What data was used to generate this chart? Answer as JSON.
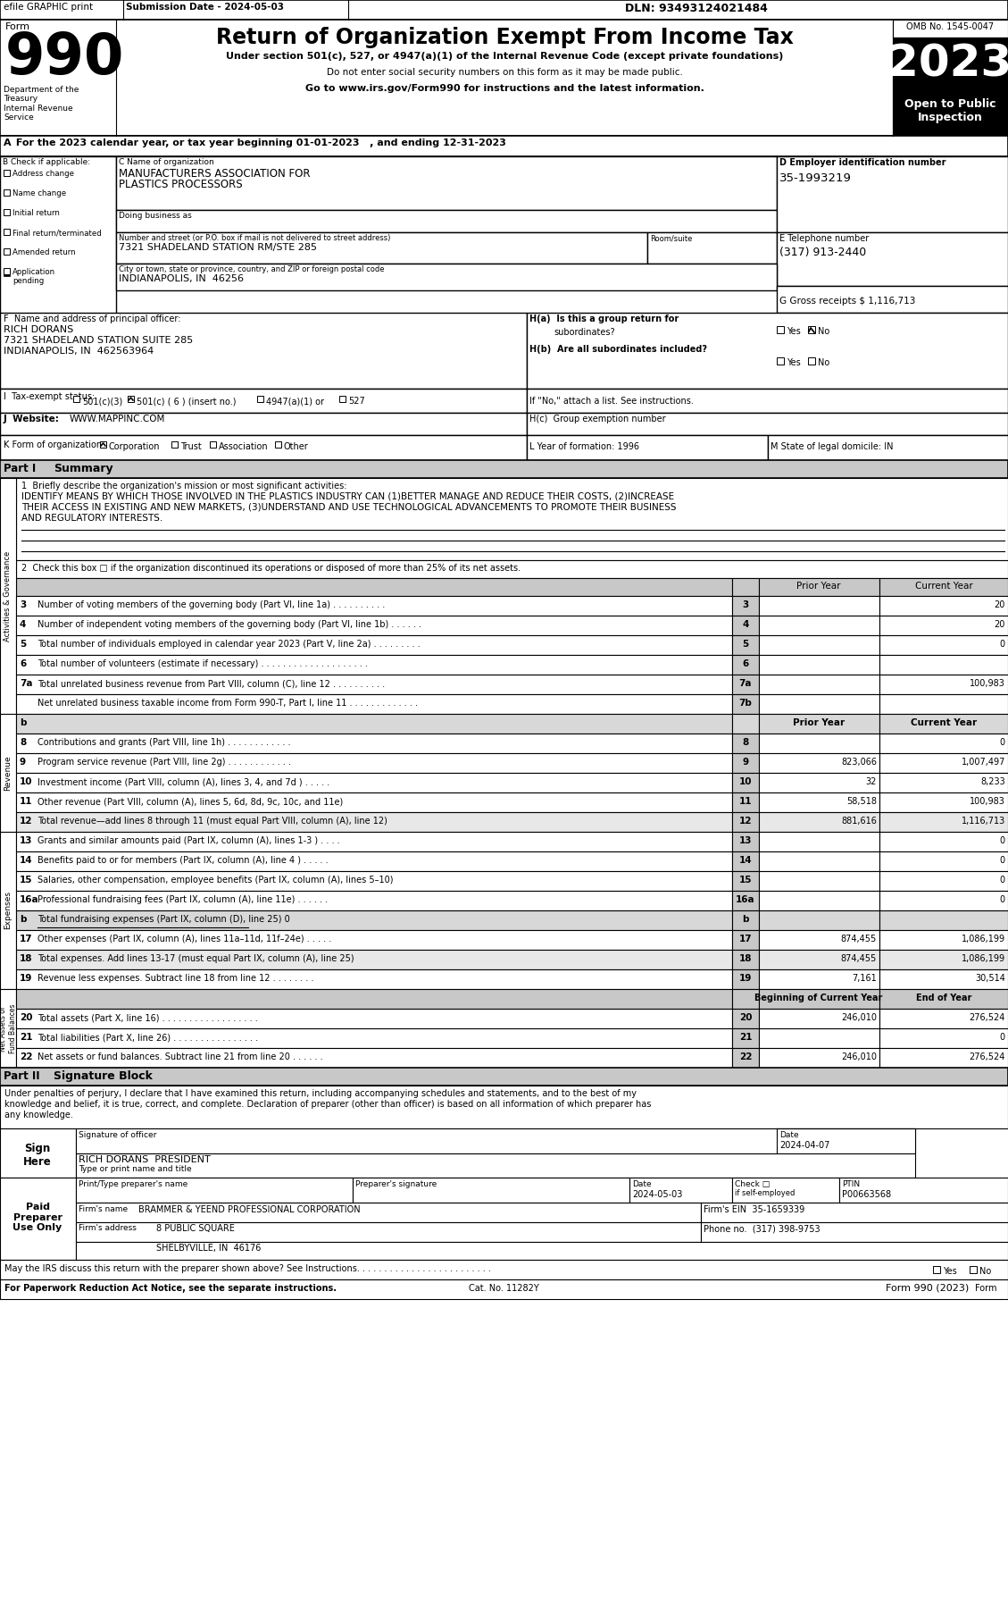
{
  "title": "Return of Organization Exempt From Income Tax",
  "form_number": "990",
  "year": "2023",
  "omb": "OMB No. 1545-0047",
  "dln": "DLN: 93493124021484",
  "submission_date": "Submission Date - 2024-05-03",
  "efile_text": "efile GRAPHIC print",
  "under_section": "Under section 501(c), 527, or 4947(a)(1) of the Internal Revenue Code (except private foundations)",
  "do_not_enter": "Do not enter social security numbers on this form as it may be made public.",
  "go_to": "Go to www.irs.gov/Form990 for instructions and the latest information.",
  "dept": "Department of the\nTreasury\nInternal Revenue\nService",
  "year_line_a": "A",
  "year_line": " For the 2023 calendar year, or tax year beginning 01-01-2023   , and ending 12-31-2023",
  "org_name_line1": "MANUFACTURERS ASSOCIATION FOR",
  "org_name_line2": "PLASTICS PROCESSORS",
  "ein": "35-1993219",
  "phone": "(317) 913-2440",
  "gross_receipts": "1,116,713",
  "address_value": "7321 SHADELAND STATION RM/STE 285",
  "city_value": "INDIANAPOLIS, IN  46256",
  "principal_name": "RICH DORANS",
  "principal_addr1": "7321 SHADELAND STATION SUITE 285",
  "principal_addr2": "INDIANAPOLIS, IN  462563964",
  "website": "WWW.MAPPINC.COM",
  "l_year": "1996",
  "m_state": "IN",
  "mission_text_line1": "IDENTIFY MEANS BY WHICH THOSE INVOLVED IN THE PLASTICS INDUSTRY CAN (1)BETTER MANAGE AND REDUCE THEIR COSTS, (2)INCREASE",
  "mission_text_line2": "THEIR ACCESS IN EXISTING AND NEW MARKETS, (3)UNDERSTAND AND USE TECHNOLOGICAL ADVANCEMENTS TO PROMOTE THEIR BUSINESS",
  "mission_text_line3": "AND REGULATORY INTERESTS.",
  "sig_declaration_line1": "Under penalties of perjury, I declare that I have examined this return, including accompanying schedules and statements, and to the best of my",
  "sig_declaration_line2": "knowledge and belief, it is true, correct, and complete. Declaration of preparer (other than officer) is based on all information of which preparer has",
  "sig_declaration_line3": "any knowledge.",
  "sig_officer_date": "2024-04-07",
  "sig_officer_name": "RICH DORANS  PRESIDENT",
  "preparer_date": "2024-05-03",
  "ptin": "P00663568",
  "firm_name": "BRAMMER & YEEND PROFESSIONAL CORPORATION",
  "firm_ein": "35-1659339",
  "firm_address": "8 PUBLIC SQUARE",
  "firm_city": "SHELBYVILLE, IN  46176",
  "firm_phone": "(317) 398-9753",
  "summary_lines": [
    {
      "num": "3",
      "label": "Number of voting members of the governing body (Part VI, line 1a) . . . . . . . . . .",
      "prior": "",
      "current": "20"
    },
    {
      "num": "4",
      "label": "Number of independent voting members of the governing body (Part VI, line 1b) . . . . . .",
      "prior": "",
      "current": "20"
    },
    {
      "num": "5",
      "label": "Total number of individuals employed in calendar year 2023 (Part V, line 2a) . . . . . . . . .",
      "prior": "",
      "current": "0"
    },
    {
      "num": "6",
      "label": "Total number of volunteers (estimate if necessary) . . . . . . . . . . . . . . . . . . . .",
      "prior": "",
      "current": ""
    },
    {
      "num": "7a",
      "label": "Total unrelated business revenue from Part VIII, column (C), line 12 . . . . . . . . . .",
      "prior": "",
      "current": "100,983"
    },
    {
      "num": "",
      "label": "Net unrelated business taxable income from Form 990-T, Part I, line 11 . . . . . . . . . . . . .",
      "prior": "",
      "current": "",
      "num_right": "7b"
    }
  ],
  "revenue_lines": [
    {
      "num": "8",
      "label": "Contributions and grants (Part VIII, line 1h) . . . . . . . . . . . .",
      "prior": "",
      "current": "0"
    },
    {
      "num": "9",
      "label": "Program service revenue (Part VIII, line 2g) . . . . . . . . . . . .",
      "prior": "823,066",
      "current": "1,007,497"
    },
    {
      "num": "10",
      "label": "Investment income (Part VIII, column (A), lines 3, 4, and 7d ) . . . . .",
      "prior": "32",
      "current": "8,233"
    },
    {
      "num": "11",
      "label": "Other revenue (Part VIII, column (A), lines 5, 6d, 8d, 9c, 10c, and 11e)",
      "prior": "58,518",
      "current": "100,983"
    },
    {
      "num": "12",
      "label": "Total revenue—add lines 8 through 11 (must equal Part VIII, column (A), line 12)",
      "prior": "881,616",
      "current": "1,116,713",
      "bold": true
    }
  ],
  "expense_lines": [
    {
      "num": "13",
      "label": "Grants and similar amounts paid (Part IX, column (A), lines 1-3 ) . . . .",
      "prior": "",
      "current": "0"
    },
    {
      "num": "14",
      "label": "Benefits paid to or for members (Part IX, column (A), line 4 ) . . . . .",
      "prior": "",
      "current": "0"
    },
    {
      "num": "15",
      "label": "Salaries, other compensation, employee benefits (Part IX, column (A), lines 5–10)",
      "prior": "",
      "current": "0"
    },
    {
      "num": "16a",
      "label": "Professional fundraising fees (Part IX, column (A), line 11e) . . . . . .",
      "prior": "",
      "current": "0"
    },
    {
      "num": "b",
      "label": "Total fundraising expenses (Part IX, column (D), line 25) 0",
      "prior": "",
      "current": "",
      "gray": true
    },
    {
      "num": "17",
      "label": "Other expenses (Part IX, column (A), lines 11a–11d, 11f–24e) . . . . .",
      "prior": "874,455",
      "current": "1,086,199"
    },
    {
      "num": "18",
      "label": "Total expenses. Add lines 13-17 (must equal Part IX, column (A), line 25)",
      "prior": "874,455",
      "current": "1,086,199",
      "bold": true
    },
    {
      "num": "19",
      "label": "Revenue less expenses. Subtract line 18 from line 12 . . . . . . . .",
      "prior": "7,161",
      "current": "30,514"
    }
  ],
  "net_assets_lines": [
    {
      "num": "20",
      "label": "Total assets (Part X, line 16) . . . . . . . . . . . . . . . . . .",
      "prior": "246,010",
      "current": "276,524"
    },
    {
      "num": "21",
      "label": "Total liabilities (Part X, line 26) . . . . . . . . . . . . . . . .",
      "prior": "",
      "current": "0"
    },
    {
      "num": "22",
      "label": "Net assets or fund balances. Subtract line 21 from line 20 . . . . . .",
      "prior": "246,010",
      "current": "276,524"
    }
  ]
}
